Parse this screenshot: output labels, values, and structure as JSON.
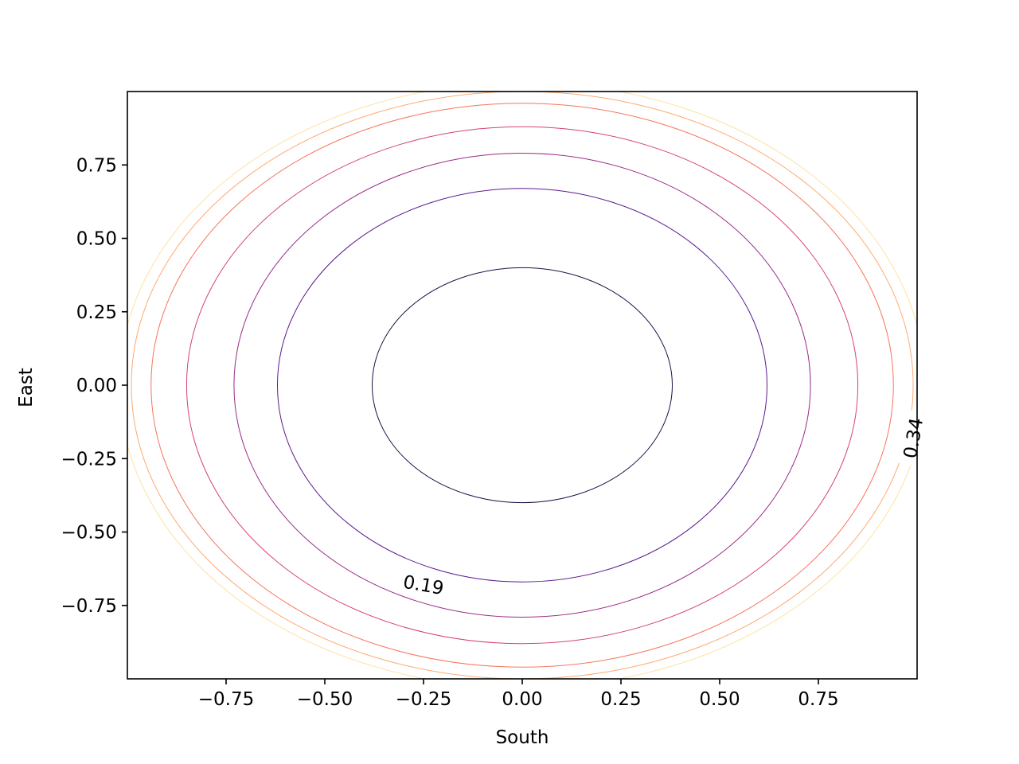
{
  "chart_data": {
    "type": "contour",
    "title": "",
    "xlabel": "South",
    "ylabel": "East",
    "xlim": [
      -1.0,
      1.0
    ],
    "ylim": [
      -1.0,
      1.0
    ],
    "grid": false,
    "colormap": "magma",
    "xticks": [
      -0.75,
      -0.5,
      -0.25,
      0.0,
      0.25,
      0.5,
      0.75
    ],
    "yticks": [
      -0.75,
      -0.5,
      -0.25,
      0.0,
      0.25,
      0.5,
      0.75
    ],
    "xtick_labels": [
      "−0.75",
      "−0.50",
      "−0.25",
      "0.00",
      "0.25",
      "0.50",
      "0.75"
    ],
    "ytick_labels": [
      "−0.75",
      "−0.50",
      "−0.25",
      "0.00",
      "0.25",
      "0.50",
      "0.75"
    ],
    "levels": [
      {
        "value": 0.14,
        "rx": 0.38,
        "ry": 0.4,
        "color": "#1b1044"
      },
      {
        "value": 0.19,
        "rx": 0.62,
        "ry": 0.67,
        "color": "#5c1a8e"
      },
      {
        "value": 0.24,
        "rx": 0.73,
        "ry": 0.79,
        "color": "#9a2a86"
      },
      {
        "value": 0.29,
        "rx": 0.85,
        "ry": 0.88,
        "color": "#d5426e"
      },
      {
        "value": 0.34,
        "rx": 0.94,
        "ry": 0.96,
        "color": "#f6745c"
      },
      {
        "value": 0.39,
        "rx": 0.99,
        "ry": 1.0,
        "color": "#fdaa72"
      },
      {
        "value": 0.44,
        "rx": 1.02,
        "ry": 1.03,
        "color": "#fde3a4"
      }
    ],
    "contour_labels": [
      {
        "text": "0.19",
        "x": -0.25,
        "y": -0.68,
        "angle": 10
      },
      {
        "text": "0.34",
        "x": 0.99,
        "y": -0.18,
        "angle": -80
      }
    ]
  }
}
